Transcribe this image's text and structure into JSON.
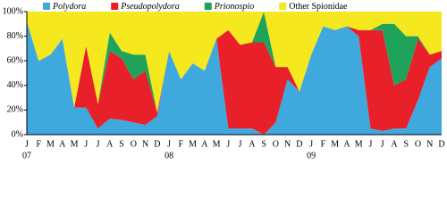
{
  "chart_data": {
    "type": "stacked_area",
    "categories": [
      "J",
      "F",
      "M",
      "A",
      "M",
      "J",
      "J",
      "A",
      "S",
      "O",
      "N",
      "D",
      "J",
      "F",
      "M",
      "A",
      "M",
      "J",
      "J",
      "A",
      "S",
      "O",
      "N",
      "D",
      "J",
      "F",
      "M",
      "A",
      "M",
      "J",
      "J",
      "A",
      "S",
      "O",
      "N",
      "D"
    ],
    "years": [
      "07",
      "08",
      "09"
    ],
    "series": [
      {
        "name": "Polydora",
        "color": "#3fa9de",
        "values": [
          92,
          60,
          65,
          78,
          22,
          22,
          5,
          13,
          12,
          10,
          8,
          15,
          68,
          45,
          58,
          52,
          78,
          5,
          5,
          5,
          0,
          10,
          45,
          35,
          65,
          88,
          85,
          88,
          80,
          5,
          3,
          5,
          5,
          28,
          55,
          62
        ]
      },
      {
        "name": "Pseudopolydora",
        "color": "#e8202a",
        "values": [
          0,
          0,
          0,
          0,
          0,
          50,
          20,
          55,
          50,
          35,
          44,
          3,
          0,
          0,
          0,
          0,
          0,
          80,
          68,
          70,
          75,
          45,
          10,
          0,
          0,
          0,
          0,
          0,
          5,
          80,
          82,
          35,
          40,
          50,
          10,
          6
        ]
      },
      {
        "name": "Prionospio",
        "color": "#1fa35b",
        "values": [
          0,
          0,
          0,
          0,
          0,
          0,
          0,
          15,
          6,
          20,
          13,
          0,
          0,
          0,
          0,
          0,
          0,
          0,
          0,
          0,
          25,
          0,
          0,
          0,
          0,
          0,
          0,
          0,
          0,
          0,
          5,
          50,
          35,
          2,
          0,
          0
        ]
      },
      {
        "name": "Other Spionidae",
        "color": "#f6e81e",
        "values": [
          8,
          40,
          35,
          22,
          78,
          28,
          75,
          17,
          32,
          35,
          35,
          82,
          32,
          55,
          42,
          48,
          22,
          15,
          27,
          25,
          0,
          45,
          45,
          65,
          35,
          12,
          15,
          12,
          15,
          15,
          10,
          10,
          20,
          20,
          35,
          32
        ]
      }
    ],
    "ylim": [
      0,
      100
    ],
    "yticks": [
      {
        "value": 0,
        "label": "0%"
      },
      {
        "value": 20,
        "label": "20%"
      },
      {
        "value": 40,
        "label": "40%"
      },
      {
        "value": 60,
        "label": "60%"
      },
      {
        "value": 80,
        "label": "80%"
      },
      {
        "value": 100,
        "label": "100%"
      }
    ]
  }
}
